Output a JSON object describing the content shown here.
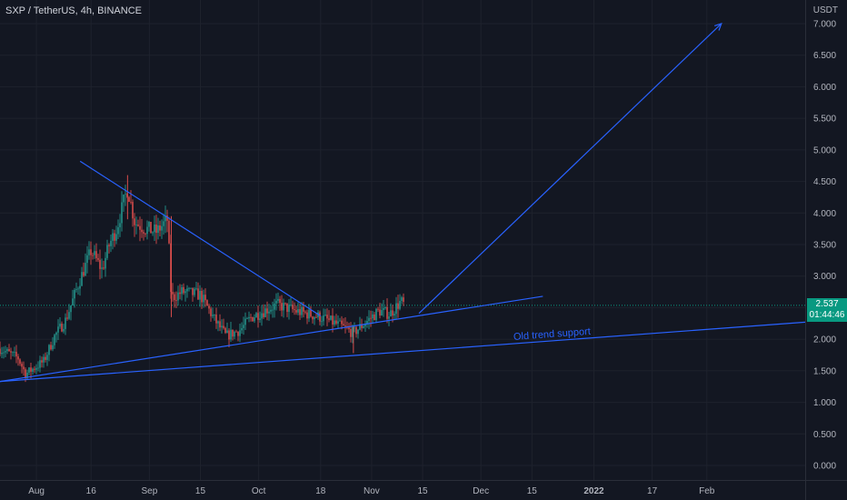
{
  "header": {
    "symbol_title": "SXP / TetherUS, 4h, BINANCE"
  },
  "price_scale": {
    "unit": "USDT",
    "ticks": [
      "7.000",
      "6.500",
      "6.000",
      "5.500",
      "5.000",
      "4.500",
      "4.000",
      "3.500",
      "3.000",
      "2.500",
      "2.000",
      "1.500",
      "1.000",
      "0.500",
      "0.000"
    ]
  },
  "last_price": {
    "value": "2.537",
    "countdown": "01:44:46"
  },
  "time_axis": {
    "labels": [
      "Aug",
      "16",
      "Sep",
      "15",
      "Oct",
      "18",
      "Nov",
      "15",
      "Dec",
      "15",
      "2022",
      "17",
      "Feb"
    ]
  },
  "annotations": {
    "old_trend_support": "Old trend support"
  },
  "colors": {
    "background": "#131722",
    "grid": "#1e222d",
    "up": "#26a69a",
    "down": "#ef5350",
    "drawing": "#2962ff",
    "last_price_line": "#089981"
  },
  "chart_data": {
    "type": "candlestick",
    "title": "SXP / TetherUS, 4h, BINANCE",
    "y_unit": "USDT",
    "ylim": [
      -0.15,
      7.35
    ],
    "grid": true,
    "x_range": [
      "2021-07-22",
      "2022-02-28"
    ],
    "price_path": [
      [
        "2021-07-22",
        1.85
      ],
      [
        "2021-07-27",
        1.7
      ],
      [
        "2021-07-29",
        1.45
      ],
      [
        "2021-08-03",
        1.65
      ],
      [
        "2021-08-06",
        2.05
      ],
      [
        "2021-08-09",
        2.3
      ],
      [
        "2021-08-13",
        2.95
      ],
      [
        "2021-08-16",
        3.4
      ],
      [
        "2021-08-19",
        3.1
      ],
      [
        "2021-08-21",
        3.5
      ],
      [
        "2021-08-23",
        3.75
      ],
      [
        "2021-08-26",
        4.4
      ],
      [
        "2021-08-28",
        3.85
      ],
      [
        "2021-08-31",
        3.75
      ],
      [
        "2021-09-03",
        3.7
      ],
      [
        "2021-09-06",
        3.9
      ],
      [
        "2021-09-07",
        2.65
      ],
      [
        "2021-09-10",
        2.75
      ],
      [
        "2021-09-15",
        2.7
      ],
      [
        "2021-09-19",
        2.3
      ],
      [
        "2021-09-22",
        2.05
      ],
      [
        "2021-09-26",
        2.15
      ],
      [
        "2021-09-29",
        2.35
      ],
      [
        "2021-10-06",
        2.55
      ],
      [
        "2021-10-11",
        2.45
      ],
      [
        "2021-10-18",
        2.35
      ],
      [
        "2021-10-22",
        2.25
      ],
      [
        "2021-10-27",
        2.1
      ],
      [
        "2021-10-31",
        2.3
      ],
      [
        "2021-11-03",
        2.45
      ],
      [
        "2021-11-06",
        2.4
      ],
      [
        "2021-11-09",
        2.6
      ],
      [
        "2021-11-10",
        2.537
      ]
    ],
    "last_price": 2.537,
    "drawings": [
      {
        "name": "descending-trendline",
        "from": [
          "2021-08-13",
          4.82
        ],
        "to": [
          "2021-10-18",
          2.37
        ]
      },
      {
        "name": "ascending-trendline",
        "from": [
          "2021-07-22",
          1.33
        ],
        "to": [
          "2021-12-18",
          2.68
        ]
      },
      {
        "name": "old-trend-support",
        "from": [
          "2021-07-22",
          1.33
        ],
        "to": [
          "2022-02-28",
          2.27
        ],
        "label": "Old trend support"
      },
      {
        "name": "target-arrow",
        "from": [
          "2021-11-14",
          2.41
        ],
        "to": [
          "2022-02-05",
          7.0
        ]
      }
    ]
  }
}
